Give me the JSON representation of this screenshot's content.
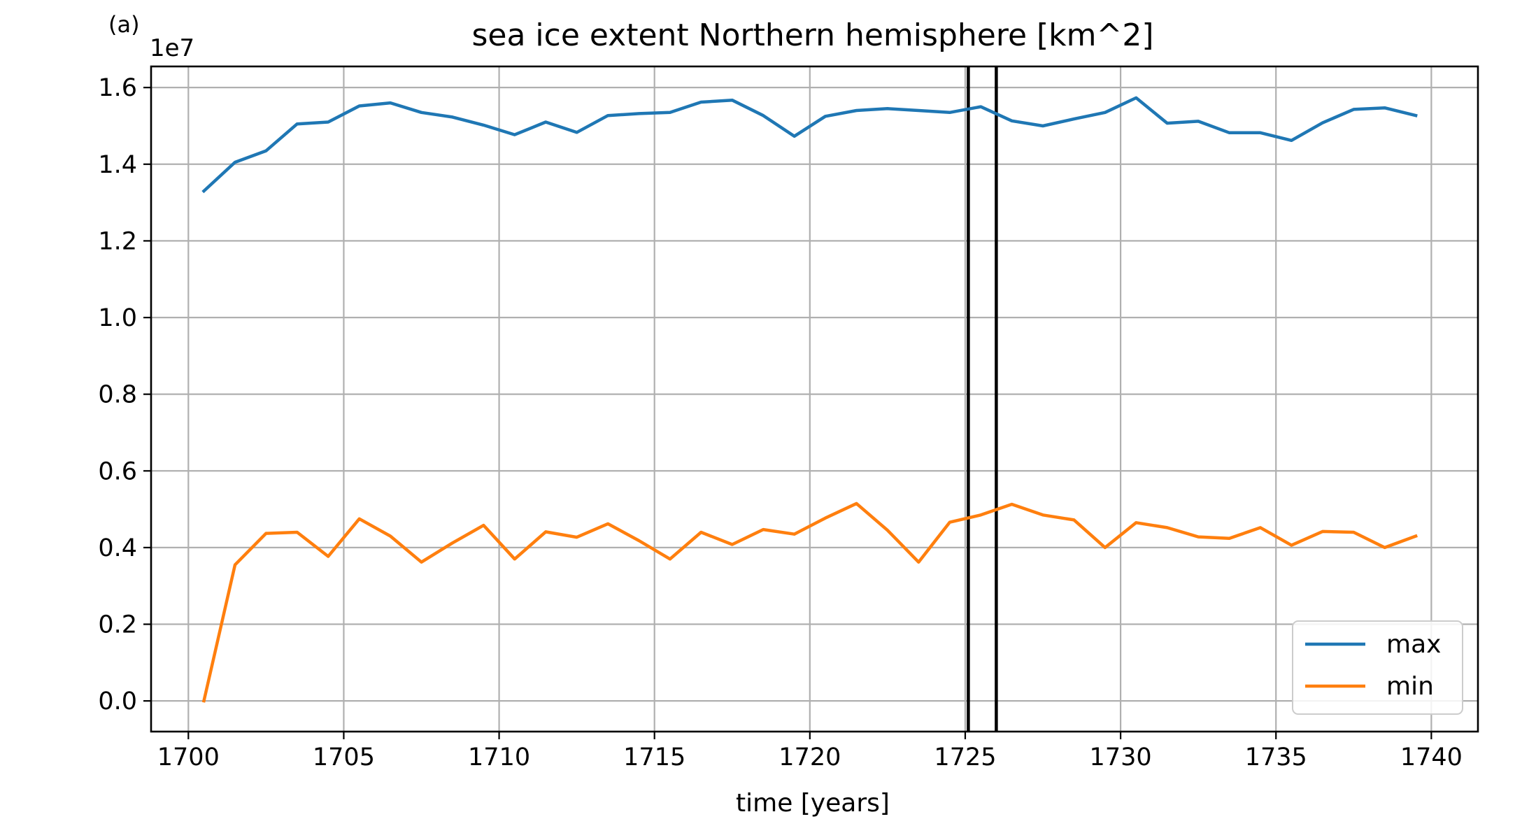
{
  "panel_label": "(a)",
  "chart_data": {
    "type": "line",
    "title": "sea ice extent Northern hemisphere [km^2]",
    "xlabel": "time [years]",
    "ylabel": "",
    "y_offset_label": "1e7",
    "y_scale_factor": 10000000,
    "xlim": [
      1698.8,
      1741.5
    ],
    "ylim": [
      -0.08,
      1.655
    ],
    "x_ticks": [
      1700,
      1705,
      1710,
      1715,
      1720,
      1725,
      1730,
      1735,
      1740
    ],
    "x_tick_labels": [
      "1700",
      "1705",
      "1710",
      "1715",
      "1720",
      "1725",
      "1730",
      "1735",
      "1740"
    ],
    "y_ticks": [
      0.0,
      0.2,
      0.4,
      0.6,
      0.8,
      1.0,
      1.2,
      1.4,
      1.6
    ],
    "y_tick_labels": [
      "0.0",
      "0.2",
      "0.4",
      "0.6",
      "0.8",
      "1.0",
      "1.2",
      "1.4",
      "1.6"
    ],
    "grid": true,
    "legend_position": "lower-right",
    "vertical_lines": [
      1725.1,
      1726.0
    ],
    "vertical_line_color": "#000000",
    "x": [
      1700.5,
      1701.5,
      1702.5,
      1703.5,
      1704.5,
      1705.5,
      1706.5,
      1707.5,
      1708.5,
      1709.5,
      1710.5,
      1711.5,
      1712.5,
      1713.5,
      1714.5,
      1715.5,
      1716.5,
      1717.5,
      1718.5,
      1719.5,
      1720.5,
      1721.5,
      1722.5,
      1723.5,
      1724.5,
      1725.5,
      1726.5,
      1727.5,
      1728.5,
      1729.5,
      1730.5,
      1731.5,
      1732.5,
      1733.5,
      1734.5,
      1735.5,
      1736.5,
      1737.5,
      1738.5,
      1739.5
    ],
    "series": [
      {
        "name": "max",
        "color": "#1f77b4",
        "values": [
          1.33,
          1.405,
          1.435,
          1.505,
          1.51,
          1.552,
          1.56,
          1.535,
          1.523,
          1.502,
          1.477,
          1.51,
          1.483,
          1.527,
          1.532,
          1.535,
          1.562,
          1.567,
          1.527,
          1.473,
          1.525,
          1.54,
          1.545,
          1.54,
          1.535,
          1.55,
          1.513,
          1.5,
          1.518,
          1.535,
          1.573,
          1.507,
          1.512,
          1.482,
          1.482,
          1.462,
          1.508,
          1.543,
          1.547,
          1.527
        ]
      },
      {
        "name": "min",
        "color": "#ff7f0e",
        "values": [
          0.0,
          0.355,
          0.437,
          0.44,
          0.377,
          0.475,
          0.43,
          0.362,
          0.412,
          0.458,
          0.37,
          0.441,
          0.427,
          0.462,
          0.418,
          0.37,
          0.44,
          0.408,
          0.447,
          0.435,
          0.477,
          0.515,
          0.445,
          0.362,
          0.466,
          0.485,
          0.513,
          0.485,
          0.472,
          0.4,
          0.465,
          0.452,
          0.428,
          0.424,
          0.452,
          0.406,
          0.442,
          0.44,
          0.4,
          0.43
        ]
      }
    ]
  }
}
